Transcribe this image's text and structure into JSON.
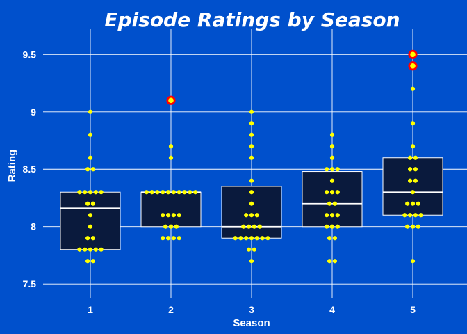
{
  "chart_data": {
    "type": "box",
    "title": "Episode Ratings by Season",
    "xlabel": "Season",
    "ylabel": "Rating",
    "ylim": [
      7.38,
      9.72
    ],
    "yticks": [
      7.5,
      8,
      8.5,
      9,
      9.5
    ],
    "ytick_labels": [
      "7.5",
      "8",
      "8.5",
      "9",
      "9.5"
    ],
    "grid": true,
    "colors": {
      "background": "#0050cc",
      "box_fill": "#0a1a3d",
      "box_stroke": "#ffffff",
      "median": "#ffffff",
      "point": "#ffff00",
      "outlier_ring": "#ff0000",
      "grid": "#ffffff"
    },
    "seasons": [
      {
        "label": "1",
        "q1": 7.8,
        "median": 8.16,
        "q3": 8.3,
        "points": [
          9.0,
          8.8,
          8.6,
          8.5,
          8.5,
          8.3,
          8.3,
          8.3,
          8.3,
          8.3,
          8.2,
          8.2,
          8.1,
          8.0,
          7.9,
          7.9,
          7.8,
          7.8,
          7.8,
          7.8,
          7.8,
          7.7,
          7.7
        ],
        "outliers": []
      },
      {
        "label": "2",
        "q1": 8.0,
        "median": 8.3,
        "q3": 8.3,
        "points": [
          8.7,
          8.6,
          8.3,
          8.3,
          8.3,
          8.3,
          8.3,
          8.3,
          8.3,
          8.3,
          8.3,
          8.3,
          8.1,
          8.1,
          8.1,
          8.1,
          8.0,
          8.0,
          8.0,
          7.9,
          7.9,
          7.9,
          7.9
        ],
        "outliers": [
          9.1
        ]
      },
      {
        "label": "3",
        "q1": 7.9,
        "median": 8.0,
        "q3": 8.35,
        "points": [
          9.0,
          8.9,
          8.8,
          8.7,
          8.6,
          8.4,
          8.3,
          8.2,
          8.1,
          8.1,
          8.1,
          8.0,
          8.0,
          8.0,
          8.0,
          7.9,
          7.9,
          7.9,
          7.9,
          7.9,
          7.9,
          7.9,
          7.8,
          7.8,
          7.7
        ],
        "outliers": []
      },
      {
        "label": "4",
        "q1": 8.0,
        "median": 8.2,
        "q3": 8.48,
        "points": [
          8.8,
          8.7,
          8.6,
          8.5,
          8.5,
          8.5,
          8.4,
          8.3,
          8.3,
          8.3,
          8.2,
          8.2,
          8.1,
          8.1,
          8.1,
          8.0,
          8.0,
          8.0,
          7.9,
          7.9,
          7.7,
          7.7
        ],
        "outliers": []
      },
      {
        "label": "5",
        "q1": 8.1,
        "median": 8.3,
        "q3": 8.6,
        "points": [
          9.2,
          8.9,
          8.7,
          8.6,
          8.6,
          8.5,
          8.5,
          8.4,
          8.4,
          8.3,
          8.2,
          8.2,
          8.2,
          8.1,
          8.1,
          8.1,
          8.1,
          8.0,
          8.0,
          8.0,
          7.7
        ],
        "outliers": [
          9.5,
          9.4
        ]
      }
    ]
  }
}
